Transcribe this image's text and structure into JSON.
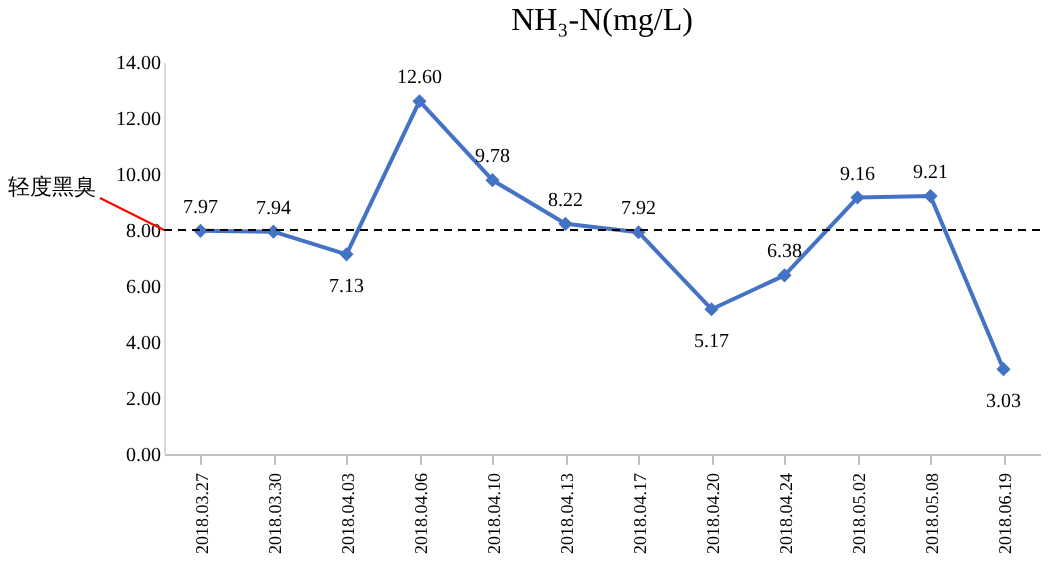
{
  "chart_data": {
    "type": "line",
    "title": "NH₃-N(mg/L)",
    "categories": [
      "2018.03.27",
      "2018.03.30",
      "2018.04.03",
      "2018.04.06",
      "2018.04.10",
      "2018.04.13",
      "2018.04.17",
      "2018.04.20",
      "2018.04.24",
      "2018.05.02",
      "2018.05.08",
      "2018.06.19"
    ],
    "series": [
      {
        "color": "#4472c4",
        "values": [
          7.97,
          7.94,
          7.13,
          12.6,
          9.78,
          8.22,
          7.92,
          5.17,
          6.38,
          9.16,
          9.21,
          3.03
        ]
      }
    ],
    "value_labels": [
      "7.97",
      "7.94",
      "7.13",
      "12.60",
      "9.78",
      "8.22",
      "7.92",
      "5.17",
      "6.38",
      "9.16",
      "9.21",
      "3.03"
    ],
    "ylim": [
      0,
      14
    ],
    "yticks": [
      {
        "value": 0,
        "label": "0.00"
      },
      {
        "value": 2,
        "label": "2.00"
      },
      {
        "value": 4,
        "label": "4.00"
      },
      {
        "value": 6,
        "label": "6.00"
      },
      {
        "value": 8,
        "label": "8.00"
      },
      {
        "value": 10,
        "label": "10.00"
      },
      {
        "value": 12,
        "label": "12.00"
      },
      {
        "value": 14,
        "label": "14.00"
      }
    ],
    "ref_lines": [
      {
        "axis": "y",
        "value": 8,
        "label": "轻度黑臭",
        "color": "#000000",
        "line_style": "dashed"
      }
    ],
    "grid": false,
    "marker": "diamond",
    "line_style": "solid"
  }
}
